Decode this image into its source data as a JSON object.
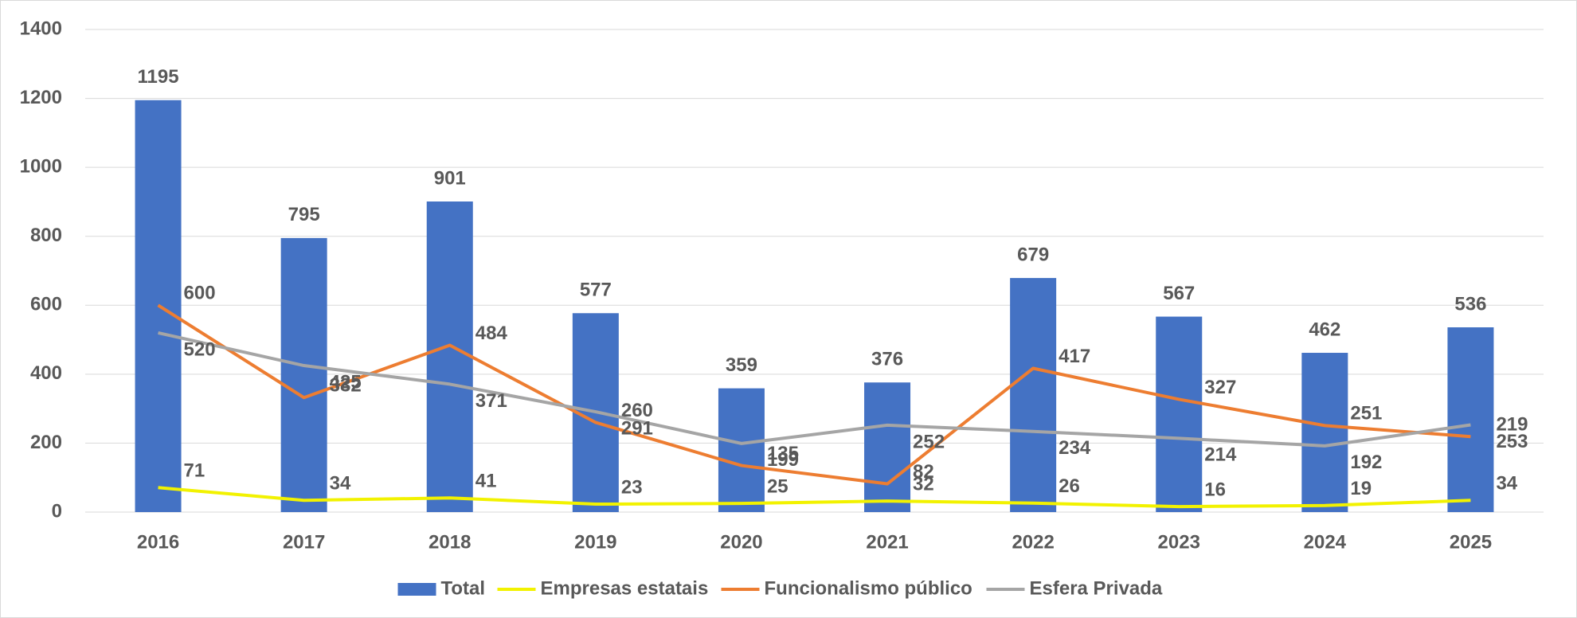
{
  "chart_data": {
    "type": "bar",
    "categories": [
      "2016",
      "2017",
      "2018",
      "2019",
      "2020",
      "2021",
      "2022",
      "2023",
      "2024",
      "2025"
    ],
    "series": [
      {
        "name": "Total",
        "type": "bar",
        "color": "#4472c4",
        "values": [
          1195,
          795,
          901,
          577,
          359,
          376,
          679,
          567,
          462,
          536
        ]
      },
      {
        "name": "Empresas estatais",
        "type": "line",
        "color": "#f2f200",
        "values": [
          71,
          34,
          41,
          23,
          25,
          32,
          26,
          16,
          19,
          34
        ]
      },
      {
        "name": "Funcionalismo público",
        "type": "line",
        "color": "#ed7d31",
        "values": [
          600,
          332,
          484,
          260,
          135,
          82,
          417,
          327,
          251,
          219
        ]
      },
      {
        "name": "Esfera Privada",
        "type": "line",
        "color": "#a5a5a5",
        "values": [
          520,
          425,
          371,
          291,
          199,
          252,
          234,
          214,
          192,
          253
        ]
      }
    ],
    "ylim": [
      0,
      1400
    ],
    "yticks": [
      0,
      200,
      400,
      600,
      800,
      1000,
      1200,
      1400
    ],
    "grid": true,
    "legend": "bottom"
  }
}
